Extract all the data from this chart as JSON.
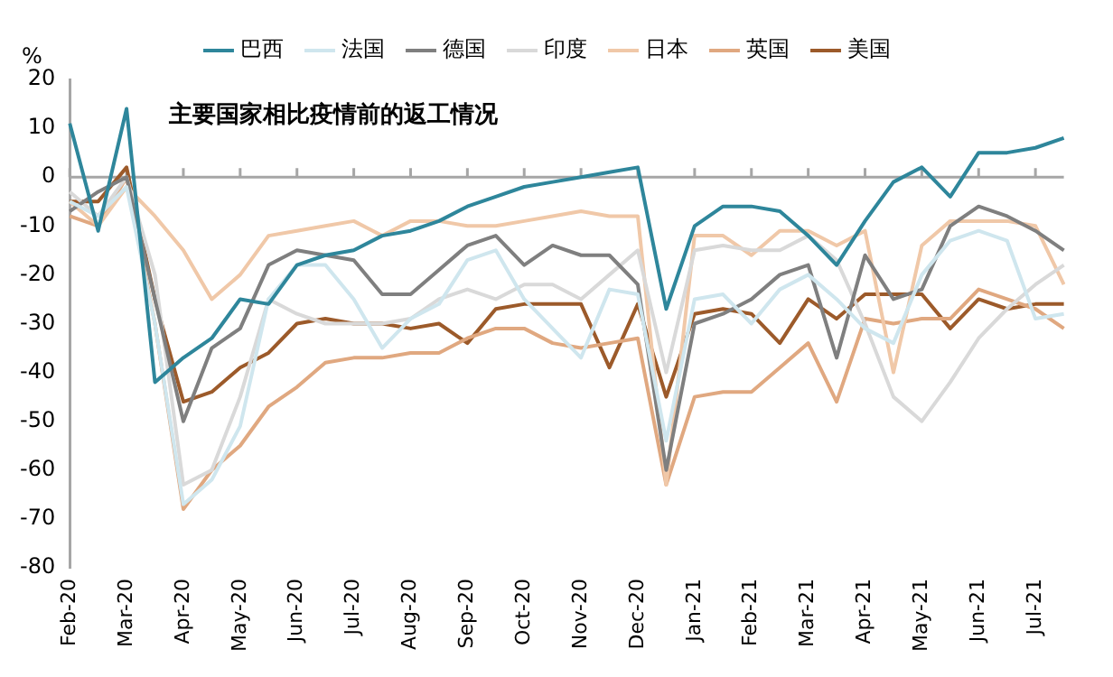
{
  "chart_data": {
    "type": "line",
    "title": "主要国家相比疫情前的返工情况",
    "ylabel": "%",
    "categories": [
      "Feb-20",
      null,
      "Mar-20",
      null,
      "Apr-20",
      null,
      "May-20",
      null,
      "Jun-20",
      null,
      "Jul-20",
      null,
      "Aug-20",
      null,
      "Sep-20",
      null,
      "Oct-20",
      null,
      "Nov-20",
      null,
      "Dec-20",
      null,
      "Jan-21",
      null,
      "Feb-21",
      null,
      "Mar-21",
      null,
      "Apr-21",
      null,
      "May-21",
      null,
      "Jun-21",
      null,
      "Jul-21",
      null
    ],
    "series": [
      {
        "name": "巴西",
        "color": "#2e869b",
        "values": [
          11,
          -11,
          14,
          -42,
          -37,
          -33,
          -25,
          -26,
          -18,
          -16,
          -15,
          -12,
          -11,
          -9,
          -6,
          -4,
          -2,
          -1,
          0,
          1,
          2,
          -27,
          -10,
          -6,
          -6,
          -7,
          -12,
          -18,
          -9,
          -1,
          2,
          -4,
          5,
          5,
          6,
          8
        ]
      },
      {
        "name": "法国",
        "color": "#cfe6ee",
        "values": [
          -5,
          -8,
          -2,
          -30,
          -67,
          -62,
          -51,
          -25,
          -18,
          -18,
          -25,
          -35,
          -29,
          -26,
          -17,
          -15,
          -25,
          -31,
          -37,
          -23,
          -24,
          -54,
          -25,
          -24,
          -30,
          -23,
          -20,
          -25,
          -31,
          -34,
          -20,
          -13,
          -11,
          -13,
          -29,
          -28
        ]
      },
      {
        "name": "德国",
        "color": "#7f7f7f",
        "values": [
          -7,
          -3,
          0,
          -25,
          -50,
          -35,
          -31,
          -18,
          -15,
          -16,
          -17,
          -24,
          -24,
          -19,
          -14,
          -12,
          -18,
          -14,
          -16,
          -16,
          -22,
          -60,
          -30,
          -28,
          -25,
          -20,
          -18,
          -37,
          -16,
          -25,
          -23,
          -10,
          -6,
          -8,
          -11,
          -15
        ]
      },
      {
        "name": "印度",
        "color": "#d9d9d9",
        "values": [
          -3,
          -8,
          0,
          -20,
          -63,
          -60,
          -45,
          -25,
          -28,
          -30,
          -30,
          -30,
          -29,
          -25,
          -23,
          -25,
          -22,
          -22,
          -25,
          -20,
          -15,
          -40,
          -15,
          -14,
          -15,
          -15,
          -12,
          -17,
          -30,
          -45,
          -50,
          -42,
          -33,
          -27,
          -22,
          -18
        ]
      },
      {
        "name": "日本",
        "color": "#f0c8a8",
        "values": [
          -5,
          -10,
          -2,
          -8,
          -15,
          -25,
          -20,
          -12,
          -11,
          -10,
          -9,
          -12,
          -9,
          -9,
          -10,
          -10,
          -9,
          -8,
          -7,
          -8,
          -8,
          -63,
          -12,
          -12,
          -16,
          -11,
          -11,
          -14,
          -11,
          -40,
          -14,
          -9,
          -9,
          -9,
          -10,
          -22
        ]
      },
      {
        "name": "英国",
        "color": "#e0a880",
        "values": [
          -8,
          -10,
          0,
          -30,
          -68,
          -60,
          -55,
          -47,
          -43,
          -38,
          -37,
          -37,
          -36,
          -36,
          -33,
          -31,
          -31,
          -34,
          -35,
          -34,
          -33,
          -63,
          -45,
          -44,
          -44,
          -39,
          -34,
          -46,
          -29,
          -30,
          -29,
          -29,
          -23,
          -25,
          -27,
          -31
        ]
      },
      {
        "name": "美国",
        "color": "#9c5a2a",
        "values": [
          -5,
          -5,
          2,
          -25,
          -46,
          -44,
          -39,
          -36,
          -30,
          -29,
          -30,
          -30,
          -31,
          -30,
          -34,
          -27,
          -26,
          -26,
          -26,
          -39,
          -26,
          -45,
          -28,
          -27,
          -28,
          -34,
          -25,
          -29,
          -24,
          -24,
          -24,
          -31,
          -25,
          -27,
          -26,
          -26
        ]
      }
    ],
    "ylim": [
      -80,
      20
    ],
    "yticks": [
      -80,
      -70,
      -60,
      -50,
      -40,
      -30,
      -20,
      -10,
      0,
      10,
      20
    ],
    "ref_lines": [
      {
        "axis": "y",
        "value": 0,
        "color": "#a6a6a6"
      }
    ],
    "grid": false,
    "legend": "top",
    "marker": "none",
    "line_style": "solid"
  }
}
